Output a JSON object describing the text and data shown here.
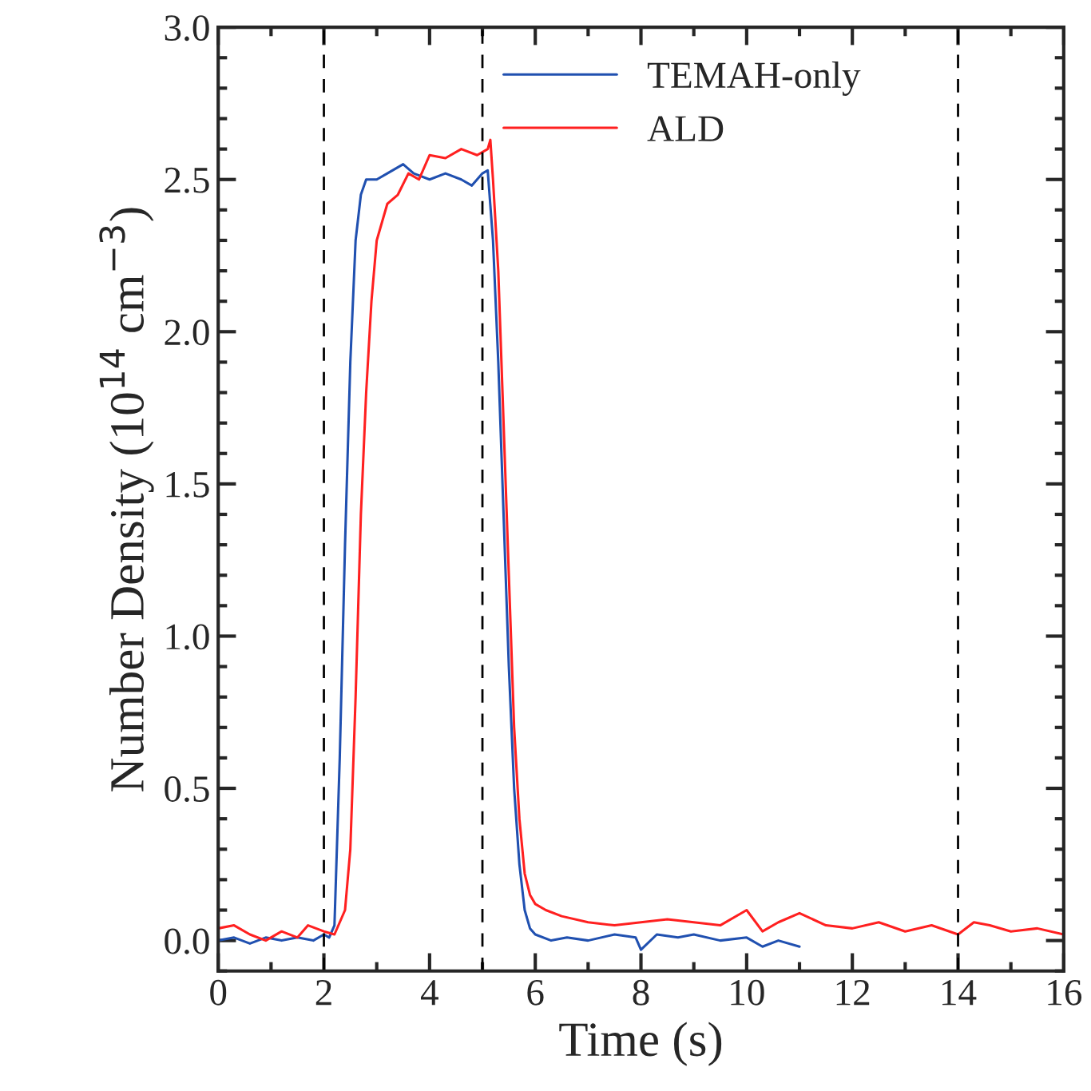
{
  "chart_data": {
    "type": "line",
    "xlabel": "Time (s)",
    "ylabel": "Number Density (10$^{14}$ cm$^{−3}$)",
    "xlim": [
      0,
      16
    ],
    "ylim": [
      -0.1,
      3.0
    ],
    "xticks": [
      0,
      2,
      4,
      6,
      8,
      10,
      12,
      14,
      16
    ],
    "yticks": [
      {
        "value": 0,
        "label": "0.0"
      },
      0.5,
      {
        "value": 1,
        "label": "1.0"
      },
      1.5,
      {
        "value": 2,
        "label": "2.0"
      },
      2.5,
      {
        "value": 3,
        "label": "3.0"
      }
    ],
    "grid": false,
    "legend": "top right",
    "line_style": "solid",
    "marker": "none",
    "ref_lines": [
      {
        "axis": "x",
        "value": 2,
        "color": "#000000",
        "line_style": "dashed"
      },
      {
        "axis": "x",
        "value": 5,
        "color": "#000000",
        "line_style": "dashed"
      },
      {
        "axis": "x",
        "value": 14,
        "color": "#000000",
        "line_style": "dashed"
      }
    ],
    "series": [
      {
        "name": "TEMAH-only",
        "color": "#2050b0",
        "x": [
          0,
          0.3,
          0.6,
          0.9,
          1.2,
          1.5,
          1.8,
          2.0,
          2.1,
          2.2,
          2.3,
          2.4,
          2.5,
          2.6,
          2.7,
          2.8,
          3.0,
          3.2,
          3.5,
          3.7,
          4.0,
          4.3,
          4.6,
          4.8,
          5.0,
          5.1,
          5.2,
          5.3,
          5.4,
          5.5,
          5.6,
          5.7,
          5.8,
          5.9,
          6.0,
          6.3,
          6.6,
          7.0,
          7.5,
          7.9,
          8.0,
          8.3,
          8.7,
          9.0,
          9.5,
          10.0,
          10.3,
          10.6,
          11.0
        ],
        "values": [
          0.0,
          0.01,
          -0.01,
          0.01,
          0.0,
          0.01,
          0.0,
          0.02,
          0.01,
          0.05,
          0.6,
          1.3,
          1.9,
          2.3,
          2.45,
          2.5,
          2.5,
          2.52,
          2.55,
          2.52,
          2.5,
          2.52,
          2.5,
          2.48,
          2.52,
          2.53,
          2.3,
          1.9,
          1.4,
          0.9,
          0.5,
          0.25,
          0.1,
          0.04,
          0.02,
          0.0,
          0.01,
          0.0,
          0.02,
          0.01,
          -0.03,
          0.02,
          0.01,
          0.02,
          0.0,
          0.01,
          -0.02,
          0.0,
          -0.02
        ]
      },
      {
        "name": "ALD",
        "color": "#ff2020",
        "x": [
          0,
          0.3,
          0.6,
          0.9,
          1.2,
          1.5,
          1.7,
          2.0,
          2.2,
          2.4,
          2.5,
          2.6,
          2.7,
          2.8,
          2.9,
          3.0,
          3.2,
          3.4,
          3.6,
          3.8,
          4.0,
          4.3,
          4.6,
          4.9,
          5.1,
          5.15,
          5.2,
          5.3,
          5.4,
          5.5,
          5.6,
          5.7,
          5.8,
          5.9,
          6.0,
          6.2,
          6.5,
          7.0,
          7.5,
          8.0,
          8.5,
          9.0,
          9.5,
          10.0,
          10.3,
          10.6,
          11.0,
          11.5,
          12.0,
          12.5,
          13.0,
          13.5,
          14.0,
          14.3,
          14.6,
          15.0,
          15.5,
          16.0
        ],
        "values": [
          0.04,
          0.05,
          0.02,
          0.0,
          0.03,
          0.01,
          0.05,
          0.03,
          0.02,
          0.1,
          0.3,
          0.8,
          1.4,
          1.8,
          2.1,
          2.3,
          2.42,
          2.45,
          2.52,
          2.5,
          2.58,
          2.57,
          2.6,
          2.58,
          2.6,
          2.63,
          2.5,
          2.2,
          1.7,
          1.2,
          0.7,
          0.4,
          0.22,
          0.15,
          0.12,
          0.1,
          0.08,
          0.06,
          0.05,
          0.06,
          0.07,
          0.06,
          0.05,
          0.1,
          0.03,
          0.06,
          0.09,
          0.05,
          0.04,
          0.06,
          0.03,
          0.05,
          0.02,
          0.06,
          0.05,
          0.03,
          0.04,
          0.02
        ]
      }
    ]
  }
}
